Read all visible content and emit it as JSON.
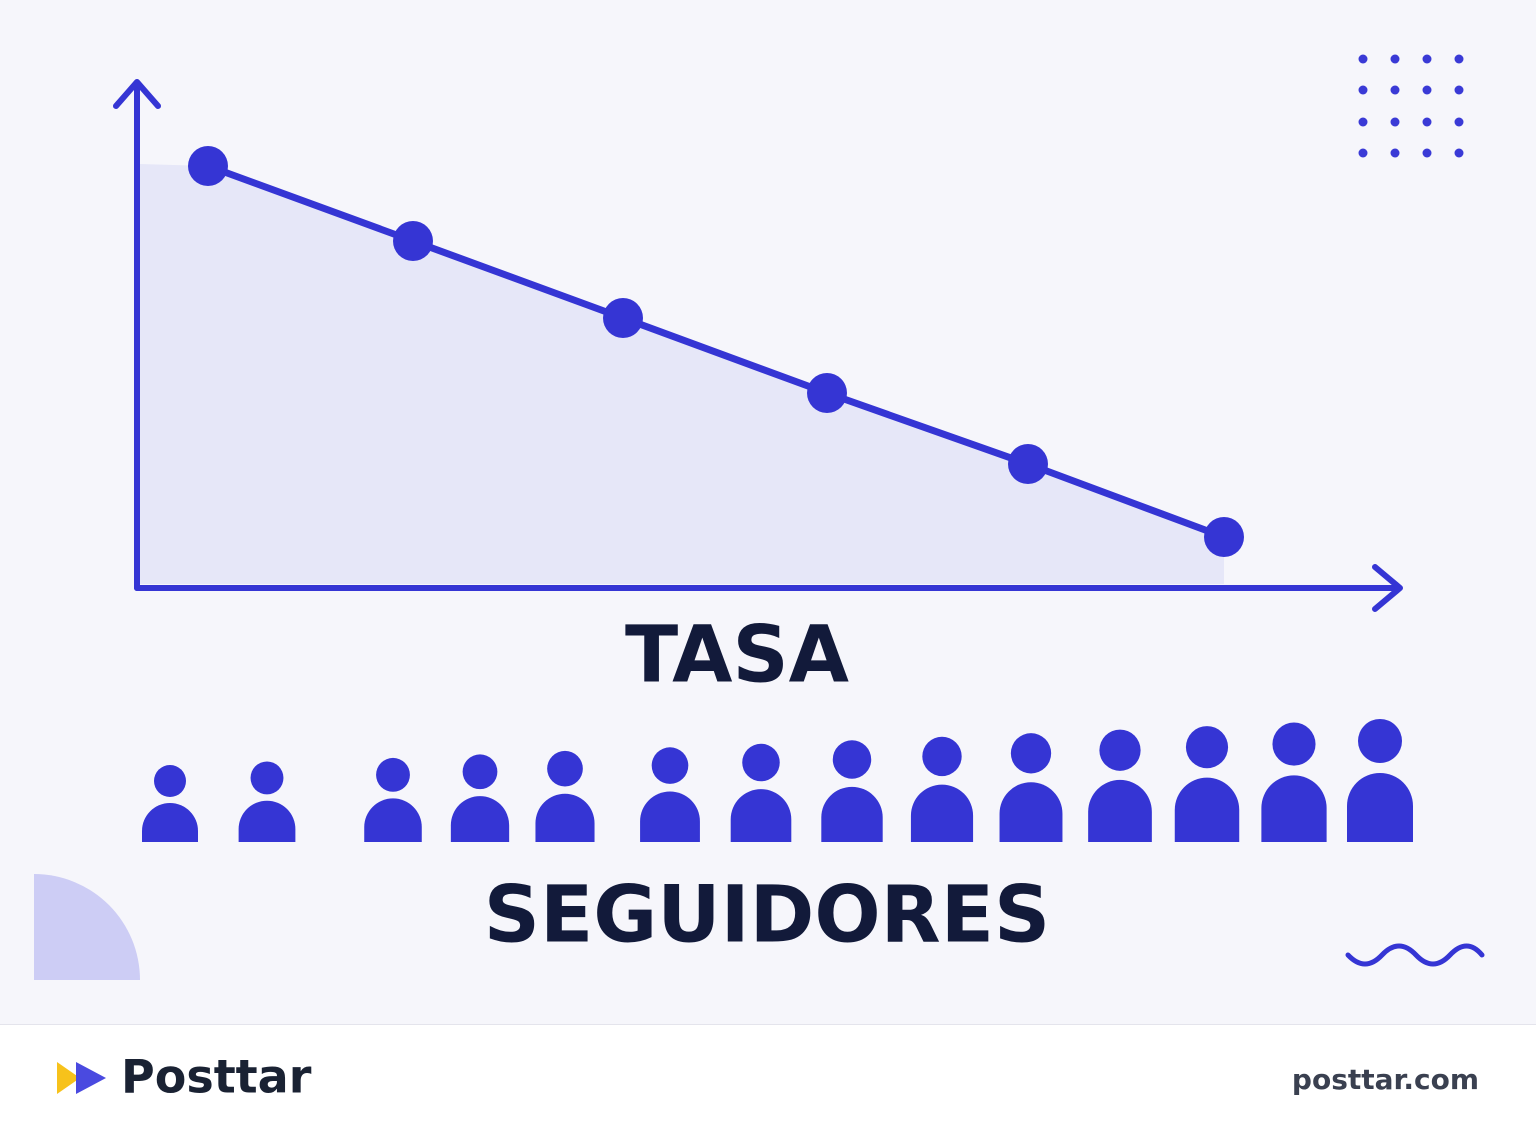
{
  "illustration": {
    "top_label": "TASA",
    "bottom_label": "SEGUIDORES"
  },
  "footer": {
    "brand": "Posttar",
    "url": "posttar.com"
  }
}
